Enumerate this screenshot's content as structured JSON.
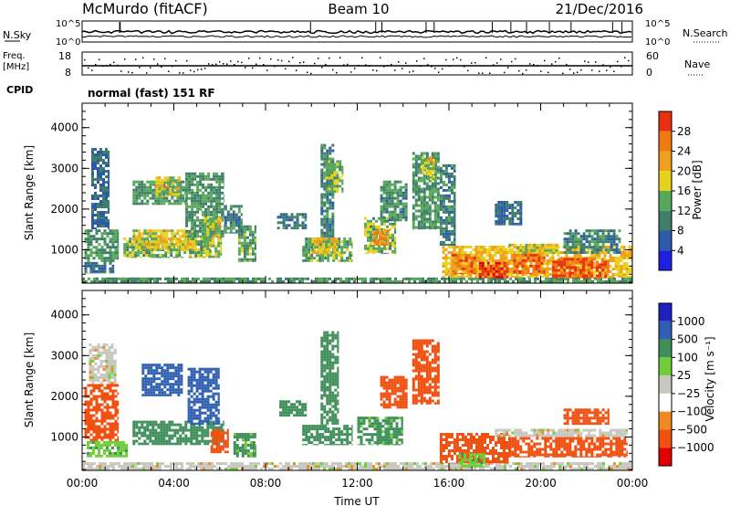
{
  "header": {
    "title_left": "McMurdo (fitACF)",
    "title_center": "Beam 10",
    "title_right": "21/Dec/2016"
  },
  "noise_panel": {
    "label_left": "N.Sky",
    "label_right": "N.Search",
    "tick_top": "10^5",
    "tick_bottom": "10^0"
  },
  "freq_panel": {
    "label_left_1": "Freq.",
    "label_left_2": "[MHz]",
    "label_right": "Nave",
    "left_top": "18",
    "left_bottom": "8",
    "right_top": "60",
    "right_bottom": "0"
  },
  "cpid": {
    "label": "CPID",
    "mode_text": "normal (fast) 151 RF"
  },
  "colors": {
    "power": [
      "#1f1fe0",
      "#2a5aa8",
      "#3f7f6a",
      "#58a85a",
      "#e8d21c",
      "#f0a020",
      "#f07a10",
      "#e83010",
      "#d80000"
    ],
    "velocity": [
      "#e00000",
      "#f05010",
      "#f08a20",
      "#ffffff",
      "#c8c8c0",
      "#6fcf3a",
      "#3f8f5a",
      "#2f5fb0",
      "#2020c0"
    ]
  },
  "chart_data": [
    {
      "type": "heatmap",
      "name": "power",
      "xlabel": "",
      "ylabel": "Slant Range [km]",
      "xlim": [
        0,
        24
      ],
      "ylim": [
        180,
        4600
      ],
      "yticks": [
        "1000",
        "2000",
        "3000",
        "4000"
      ],
      "colorbar": {
        "label": "Power [dB]",
        "ticks": [
          "4",
          "8",
          "12",
          "16",
          "20",
          "24",
          "28"
        ],
        "range": [
          0,
          32
        ]
      },
      "regions": [
        {
          "t0": 0.0,
          "t1": 24.0,
          "r0": 180,
          "r1": 320,
          "val": 12
        },
        {
          "t0": 0.1,
          "t1": 1.4,
          "r0": 420,
          "r1": 700,
          "val": 8
        },
        {
          "t0": 0.1,
          "t1": 1.6,
          "r0": 700,
          "r1": 1500,
          "val": 12
        },
        {
          "t0": 0.4,
          "t1": 1.2,
          "r0": 1500,
          "r1": 3500,
          "val": 8
        },
        {
          "t0": 1.8,
          "t1": 5.6,
          "r0": 800,
          "r1": 1300,
          "val": 14
        },
        {
          "t0": 2.2,
          "t1": 5.0,
          "r0": 1000,
          "r1": 1500,
          "val": 18
        },
        {
          "t0": 2.2,
          "t1": 4.6,
          "r0": 2100,
          "r1": 2700,
          "val": 12
        },
        {
          "t0": 3.2,
          "t1": 4.3,
          "r0": 2300,
          "r1": 2800,
          "val": 18
        },
        {
          "t0": 4.5,
          "t1": 6.2,
          "r0": 1300,
          "r1": 2900,
          "val": 12
        },
        {
          "t0": 5.3,
          "t1": 6.1,
          "r0": 800,
          "r1": 1800,
          "val": 17
        },
        {
          "t0": 6.8,
          "t1": 7.6,
          "r0": 700,
          "r1": 1600,
          "val": 13
        },
        {
          "t0": 6.2,
          "t1": 7.0,
          "r0": 1400,
          "r1": 2100,
          "val": 10
        },
        {
          "t0": 8.5,
          "t1": 9.8,
          "r0": 1500,
          "r1": 1900,
          "val": 9
        },
        {
          "t0": 9.6,
          "t1": 11.8,
          "r0": 700,
          "r1": 1300,
          "val": 14
        },
        {
          "t0": 10.0,
          "t1": 11.2,
          "r0": 900,
          "r1": 1300,
          "val": 19
        },
        {
          "t0": 10.4,
          "t1": 11.0,
          "r0": 1300,
          "r1": 3600,
          "val": 10
        },
        {
          "t0": 10.6,
          "t1": 11.4,
          "r0": 2400,
          "r1": 3200,
          "val": 15
        },
        {
          "t0": 12.3,
          "t1": 13.7,
          "r0": 900,
          "r1": 1800,
          "val": 15
        },
        {
          "t0": 12.7,
          "t1": 13.4,
          "r0": 1100,
          "r1": 1500,
          "val": 24
        },
        {
          "t0": 13.0,
          "t1": 14.2,
          "r0": 1700,
          "r1": 2700,
          "val": 11
        },
        {
          "t0": 14.4,
          "t1": 15.6,
          "r0": 1500,
          "r1": 3400,
          "val": 12
        },
        {
          "t0": 14.8,
          "t1": 15.4,
          "r0": 2700,
          "r1": 3300,
          "val": 18
        },
        {
          "t0": 15.6,
          "t1": 16.3,
          "r0": 1100,
          "r1": 3100,
          "val": 10
        },
        {
          "t0": 15.7,
          "t1": 24.0,
          "r0": 320,
          "r1": 1100,
          "val": 20
        },
        {
          "t0": 16.1,
          "t1": 17.2,
          "r0": 400,
          "r1": 900,
          "val": 26
        },
        {
          "t0": 17.3,
          "t1": 18.6,
          "r0": 300,
          "r1": 700,
          "val": 30
        },
        {
          "t0": 18.8,
          "t1": 20.2,
          "r0": 400,
          "r1": 900,
          "val": 27
        },
        {
          "t0": 20.5,
          "t1": 23.0,
          "r0": 300,
          "r1": 800,
          "val": 28
        },
        {
          "t0": 18.6,
          "t1": 20.8,
          "r0": 900,
          "r1": 1150,
          "val": 18
        },
        {
          "t0": 21.0,
          "t1": 23.5,
          "r0": 900,
          "r1": 1500,
          "val": 10
        },
        {
          "t0": 18.0,
          "t1": 19.2,
          "r0": 1600,
          "r1": 2200,
          "val": 8
        }
      ]
    },
    {
      "type": "heatmap",
      "name": "velocity",
      "xlabel": "Time UT",
      "ylabel": "Slant Range [km]",
      "xlim": [
        0,
        24
      ],
      "ylim": [
        180,
        4600
      ],
      "xticks": [
        "00:00",
        "04:00",
        "08:00",
        "12:00",
        "16:00",
        "20:00",
        "00:00"
      ],
      "yticks": [
        "1000",
        "2000",
        "3000",
        "4000"
      ],
      "colorbar": {
        "label": "Velocity [m s⁻¹]",
        "ticks": [
          "1000",
          "500",
          "100",
          "25",
          "−25",
          "−100",
          "−500",
          "−1000"
        ],
        "range": [
          -1000,
          1000
        ]
      },
      "regions": [
        {
          "t0": 0.0,
          "t1": 24.0,
          "r0": 180,
          "r1": 380,
          "val": 0
        },
        {
          "t0": 0.2,
          "t1": 2.0,
          "r0": 500,
          "r1": 900,
          "val": 80
        },
        {
          "t0": 0.1,
          "t1": 1.6,
          "r0": 900,
          "r1": 2300,
          "val": -150
        },
        {
          "t0": 0.3,
          "t1": 1.5,
          "r0": 2300,
          "r1": 3300,
          "val": 0
        },
        {
          "t0": 2.2,
          "t1": 6.2,
          "r0": 800,
          "r1": 1400,
          "val": 300
        },
        {
          "t0": 2.6,
          "t1": 4.4,
          "r0": 2000,
          "r1": 2800,
          "val": 900
        },
        {
          "t0": 4.6,
          "t1": 6.0,
          "r0": 1300,
          "r1": 2700,
          "val": 800
        },
        {
          "t0": 5.6,
          "t1": 6.4,
          "r0": 600,
          "r1": 1200,
          "val": -200
        },
        {
          "t0": 6.6,
          "t1": 7.6,
          "r0": 500,
          "r1": 1100,
          "val": 120
        },
        {
          "t0": 8.6,
          "t1": 9.8,
          "r0": 1500,
          "r1": 1900,
          "val": 300
        },
        {
          "t0": 9.6,
          "t1": 11.8,
          "r0": 800,
          "r1": 1300,
          "val": 250
        },
        {
          "t0": 10.4,
          "t1": 11.2,
          "r0": 1300,
          "r1": 3600,
          "val": 300
        },
        {
          "t0": 12.0,
          "t1": 14.0,
          "r0": 800,
          "r1": 1500,
          "val": 120
        },
        {
          "t0": 13.0,
          "t1": 14.2,
          "r0": 1700,
          "r1": 2500,
          "val": -150
        },
        {
          "t0": 14.4,
          "t1": 15.6,
          "r0": 1800,
          "r1": 3400,
          "val": -300
        },
        {
          "t0": 15.6,
          "t1": 18.6,
          "r0": 350,
          "r1": 1100,
          "val": -300
        },
        {
          "t0": 16.4,
          "t1": 17.6,
          "r0": 250,
          "r1": 600,
          "val": 80
        },
        {
          "t0": 18.6,
          "t1": 23.8,
          "r0": 500,
          "r1": 1000,
          "val": -250
        },
        {
          "t0": 18.0,
          "t1": 23.8,
          "r0": 1000,
          "r1": 1200,
          "val": 0
        },
        {
          "t0": 21.0,
          "t1": 23.0,
          "r0": 1300,
          "r1": 1700,
          "val": -300
        }
      ]
    }
  ]
}
